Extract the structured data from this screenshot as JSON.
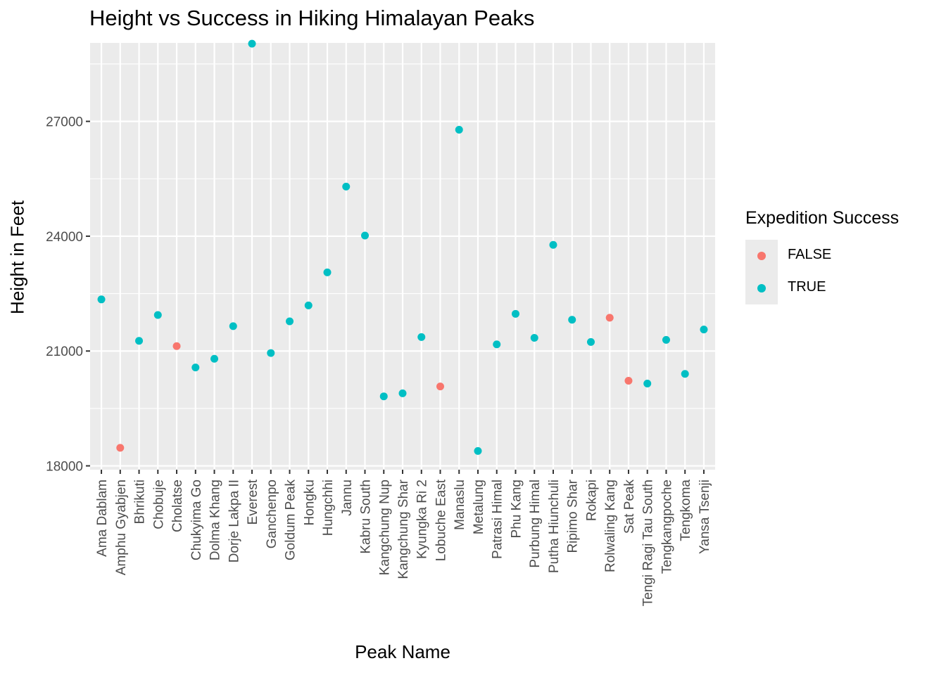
{
  "chart_data": {
    "type": "scatter",
    "title": "Height vs Success in Hiking Himalayan Peaks",
    "xlabel": "Peak Name",
    "ylabel": "Height in Feet",
    "ylim": [
      17900,
      29050
    ],
    "yticks": [
      18000,
      21000,
      24000,
      27000
    ],
    "grid": true,
    "legend": {
      "title": "Expedition Success",
      "placement": "right",
      "entries": [
        {
          "label": "FALSE",
          "color": "#f8766d"
        },
        {
          "label": "TRUE",
          "color": "#00bfc4"
        }
      ]
    },
    "categories": [
      "Ama Dablam",
      "Amphu Gyabjen",
      "Bhrikuti",
      "Chobuje",
      "Cholatse",
      "Chukyima Go",
      "Dolma Khang",
      "Dorje Lakpa II",
      "Everest",
      "Ganchenpo",
      "Goldum Peak",
      "Hongku",
      "Hungchhi",
      "Jannu",
      "Kabru South",
      "Kangchung Nup",
      "Kangchung Shar",
      "Kyungka Ri 2",
      "Lobuche East",
      "Manaslu",
      "Metalung",
      "Patrasi Himal",
      "Phu Kang",
      "Purbung Himal",
      "Putha Hiunchuli",
      "Ripimo Shar",
      "Rokapi",
      "Rolwaling Kang",
      "Sat Peak",
      "Tengi Ragi Tau South",
      "Tengkangpoche",
      "Tengkoma",
      "Yansa Tsenji"
    ],
    "points": [
      {
        "x": "Ama Dablam",
        "y": 22349,
        "success": "TRUE"
      },
      {
        "x": "Amphu Gyabjen",
        "y": 18471,
        "success": "FALSE"
      },
      {
        "x": "Bhrikuti",
        "y": 21266,
        "success": "TRUE"
      },
      {
        "x": "Chobuje",
        "y": 21942,
        "success": "TRUE"
      },
      {
        "x": "Cholatse",
        "y": 21129,
        "success": "FALSE"
      },
      {
        "x": "Chukyima Go",
        "y": 20571,
        "success": "TRUE"
      },
      {
        "x": "Dolma Khang",
        "y": 20797,
        "success": "TRUE"
      },
      {
        "x": "Dorje Lakpa II",
        "y": 21650,
        "success": "TRUE"
      },
      {
        "x": "Everest",
        "y": 29029,
        "success": "TRUE"
      },
      {
        "x": "Ganchenpo",
        "y": 20948,
        "success": "TRUE"
      },
      {
        "x": "Goldum Peak",
        "y": 21775,
        "success": "TRUE"
      },
      {
        "x": "Hongku",
        "y": 22192,
        "success": "TRUE"
      },
      {
        "x": "Hungchhi",
        "y": 23054,
        "success": "TRUE"
      },
      {
        "x": "Jannu",
        "y": 25295,
        "success": "TRUE"
      },
      {
        "x": "Kabru South",
        "y": 24016,
        "success": "TRUE"
      },
      {
        "x": "Kangchung Nup",
        "y": 19816,
        "success": "TRUE"
      },
      {
        "x": "Kangchung Shar",
        "y": 19895,
        "success": "TRUE"
      },
      {
        "x": "Kyungka Ri 2",
        "y": 21364,
        "success": "TRUE"
      },
      {
        "x": "Lobuche East",
        "y": 20075,
        "success": "FALSE"
      },
      {
        "x": "Manaslu",
        "y": 26781,
        "success": "TRUE"
      },
      {
        "x": "Metalung",
        "y": 18389,
        "success": "TRUE"
      },
      {
        "x": "Patrasi Himal",
        "y": 21175,
        "success": "TRUE"
      },
      {
        "x": "Phu Kang",
        "y": 21972,
        "success": "TRUE"
      },
      {
        "x": "Purbung Himal",
        "y": 21345,
        "success": "TRUE"
      },
      {
        "x": "Putha Hiunchuli",
        "y": 23773,
        "success": "TRUE"
      },
      {
        "x": "Ripimo Shar",
        "y": 21817,
        "success": "TRUE"
      },
      {
        "x": "Rokapi",
        "y": 21236,
        "success": "TRUE"
      },
      {
        "x": "Rolwaling Kang",
        "y": 21870,
        "success": "FALSE"
      },
      {
        "x": "Sat Peak",
        "y": 20224,
        "success": "FALSE"
      },
      {
        "x": "Tengi Ragi Tau South",
        "y": 20151,
        "success": "TRUE"
      },
      {
        "x": "Tengkangpoche",
        "y": 21292,
        "success": "TRUE"
      },
      {
        "x": "Tengkoma",
        "y": 20402,
        "success": "TRUE"
      },
      {
        "x": "Yansa Tsenji",
        "y": 21562,
        "success": "TRUE"
      }
    ]
  }
}
